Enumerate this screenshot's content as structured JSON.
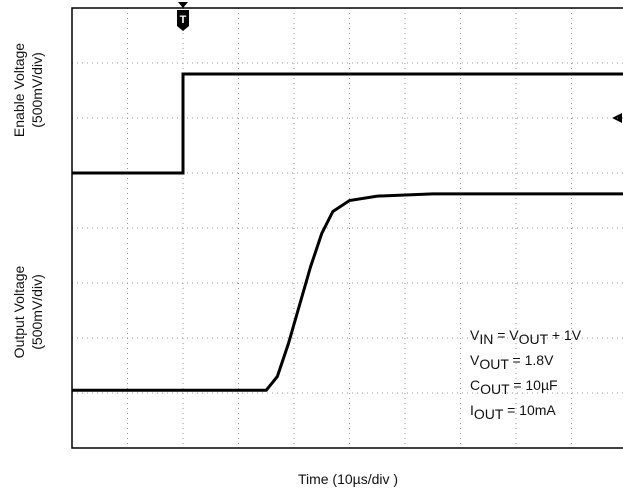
{
  "chart_data": {
    "type": "line",
    "y_labels": [
      [
        "Enable Voltage",
        "(500mV/div)"
      ],
      [
        "Output Voltage",
        "(500mV/div)"
      ]
    ],
    "x_label": "Time (10µs/div )",
    "trigger_label": "T",
    "annotations": [
      [
        "V",
        "IN",
        " = V",
        "OUT",
        " + 1V"
      ],
      [
        "V",
        "OUT",
        " = 1.8V"
      ],
      [
        "C",
        "OUT",
        " = 10µF"
      ],
      [
        "I",
        "OUT",
        " = 10mA"
      ]
    ],
    "xlim": [
      0,
      10
    ],
    "ylim": [
      0,
      8
    ],
    "xticks": [
      0,
      1,
      2,
      3,
      4,
      5,
      6,
      7,
      8,
      9,
      10
    ],
    "yticks": [
      0,
      1,
      2,
      3,
      4,
      5,
      6,
      7,
      8
    ],
    "grid": true,
    "series": [
      {
        "color": "#000000",
        "x": [
          0,
          2,
          2,
          10
        ],
        "values": [
          5,
          5,
          6.8,
          6.8
        ]
      },
      {
        "color": "#000000",
        "x": [
          0,
          3.5,
          3.7,
          3.9,
          4.1,
          4.3,
          4.5,
          4.7,
          5.0,
          5.5,
          6.5,
          10
        ],
        "values": [
          1.05,
          1.05,
          1.3,
          1.9,
          2.6,
          3.3,
          3.9,
          4.3,
          4.5,
          4.58,
          4.62,
          4.62
        ]
      }
    ]
  }
}
